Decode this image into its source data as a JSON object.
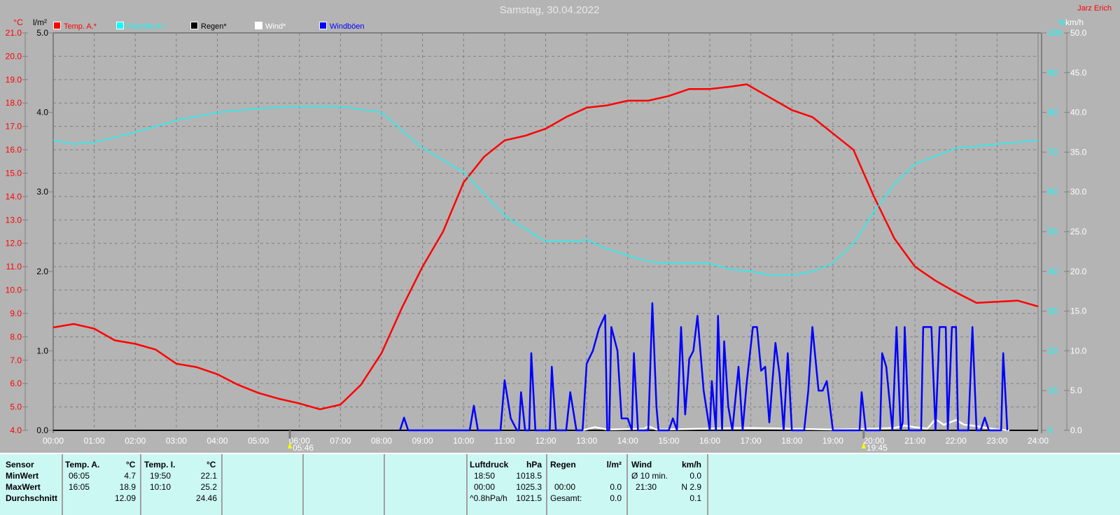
{
  "title": "Samstag, 30.04.2022",
  "author": "Jarz Erich",
  "legend": [
    {
      "label": "Temp. A.*",
      "color": "#ff0000"
    },
    {
      "label": "Feuchte A.*",
      "color": "#00ffff"
    },
    {
      "label": "Regen*",
      "color": "#000000"
    },
    {
      "label": "Wind*",
      "color": "#ffffff"
    },
    {
      "label": "Windböen",
      "color": "#0000ff"
    }
  ],
  "sun": {
    "rise": "05:46",
    "set": "19:45"
  },
  "chart_data": {
    "type": "line",
    "title": "Samstag, 30.04.2022",
    "xlabel": "",
    "x_ticks": [
      "00:00",
      "01:00",
      "02:00",
      "03:00",
      "04:00",
      "05:00",
      "06:00",
      "07:00",
      "08:00",
      "09:00",
      "10:00",
      "11:00",
      "12:00",
      "13:00",
      "14:00",
      "15:00",
      "16:00",
      "17:00",
      "18:00",
      "19:00",
      "20:00",
      "21:00",
      "22:00",
      "23:00",
      "24:00"
    ],
    "axes": {
      "temp": {
        "unit": "°C",
        "range": [
          4,
          21
        ],
        "ticks": [
          "4.0",
          "5.0",
          "6.0",
          "7.0",
          "8.0",
          "9.0",
          "10.0",
          "11.0",
          "12.0",
          "13.0",
          "14.0",
          "15.0",
          "16.0",
          "17.0",
          "18.0",
          "19.0",
          "20.0",
          "21.0"
        ]
      },
      "rain": {
        "unit": "l/m²",
        "range": [
          0,
          5
        ],
        "ticks": [
          "0.0",
          "1.0",
          "2.0",
          "3.0",
          "4.0",
          "5.0"
        ]
      },
      "humidity": {
        "unit": "%",
        "range": [
          0,
          100
        ],
        "ticks": [
          "0",
          "10",
          "20",
          "30",
          "40",
          "50",
          "60",
          "70",
          "80",
          "90",
          "100"
        ]
      },
      "wind": {
        "unit": "km/h",
        "range": [
          0,
          50
        ],
        "ticks": [
          "0.0",
          "5.0",
          "10.0",
          "15.0",
          "20.0",
          "25.0",
          "30.0",
          "35.0",
          "40.0",
          "45.0",
          "50.0"
        ]
      }
    },
    "grid": true,
    "series": [
      {
        "name": "Temp. A.*",
        "axis": "temp",
        "color": "#ff0000",
        "points": [
          [
            0,
            8.4
          ],
          [
            0.5,
            8.55
          ],
          [
            1,
            8.35
          ],
          [
            1.5,
            7.85
          ],
          [
            2,
            7.7
          ],
          [
            2.5,
            7.45
          ],
          [
            3,
            6.85
          ],
          [
            3.5,
            6.7
          ],
          [
            4,
            6.4
          ],
          [
            4.5,
            5.95
          ],
          [
            5,
            5.6
          ],
          [
            5.5,
            5.35
          ],
          [
            6,
            5.15
          ],
          [
            6.5,
            4.9
          ],
          [
            7,
            5.1
          ],
          [
            7.5,
            5.95
          ],
          [
            8,
            7.3
          ],
          [
            8.5,
            9.25
          ],
          [
            9,
            11.0
          ],
          [
            9.5,
            12.5
          ],
          [
            10,
            14.6
          ],
          [
            10.5,
            15.7
          ],
          [
            11,
            16.4
          ],
          [
            11.5,
            16.6
          ],
          [
            12,
            16.9
          ],
          [
            12.5,
            17.4
          ],
          [
            13,
            17.8
          ],
          [
            13.5,
            17.9
          ],
          [
            14,
            18.1
          ],
          [
            14.5,
            18.1
          ],
          [
            15,
            18.3
          ],
          [
            15.5,
            18.6
          ],
          [
            16,
            18.6
          ],
          [
            16.5,
            18.7
          ],
          [
            16.9,
            18.8
          ],
          [
            17.5,
            18.2
          ],
          [
            18,
            17.7
          ],
          [
            18.5,
            17.4
          ],
          [
            19,
            16.7
          ],
          [
            19.5,
            16.0
          ],
          [
            20,
            14.0
          ],
          [
            20.5,
            12.2
          ],
          [
            21,
            11.0
          ],
          [
            21.5,
            10.4
          ],
          [
            22,
            9.9
          ],
          [
            22.5,
            9.45
          ],
          [
            23,
            9.5
          ],
          [
            23.5,
            9.55
          ],
          [
            24,
            9.3
          ]
        ]
      },
      {
        "name": "Feuchte A.*",
        "axis": "humidity",
        "color": "#00ffff",
        "points": [
          [
            0,
            73
          ],
          [
            0.5,
            72
          ],
          [
            1,
            72.5
          ],
          [
            2,
            75
          ],
          [
            3,
            78
          ],
          [
            4,
            80
          ],
          [
            5,
            81
          ],
          [
            6,
            81.5
          ],
          [
            7,
            81.5
          ],
          [
            8,
            80
          ],
          [
            9,
            71
          ],
          [
            10,
            65
          ],
          [
            11,
            54
          ],
          [
            12,
            47.5
          ],
          [
            12.8,
            47.5
          ],
          [
            13,
            48
          ],
          [
            13.4,
            46
          ],
          [
            14,
            44
          ],
          [
            14.5,
            42.5
          ],
          [
            15,
            42
          ],
          [
            16,
            42
          ],
          [
            16.5,
            40.5
          ],
          [
            17,
            40
          ],
          [
            17.5,
            39
          ],
          [
            18,
            39
          ],
          [
            18.5,
            40
          ],
          [
            19,
            42
          ],
          [
            19.5,
            47
          ],
          [
            20,
            55
          ],
          [
            20.5,
            62
          ],
          [
            21,
            67
          ],
          [
            22,
            71
          ],
          [
            23,
            72
          ],
          [
            24,
            73
          ]
        ]
      },
      {
        "name": "Regen*",
        "axis": "rain",
        "color": "#000000",
        "points": [
          [
            0,
            0
          ],
          [
            24,
            0
          ]
        ]
      },
      {
        "name": "Wind*",
        "axis": "wind",
        "color": "#ffffff",
        "points": [
          [
            12.9,
            0
          ],
          [
            13.2,
            0.4
          ],
          [
            13.5,
            0.1
          ],
          [
            14.4,
            0.2
          ],
          [
            14.5,
            0.5
          ],
          [
            14.7,
            0.1
          ],
          [
            17,
            0.3
          ],
          [
            19,
            0.1
          ],
          [
            20,
            0.2
          ],
          [
            20.5,
            0.3
          ],
          [
            20.75,
            0.6
          ],
          [
            21,
            0.4
          ],
          [
            21.3,
            0.2
          ],
          [
            21.5,
            1.4
          ],
          [
            21.7,
            0.7
          ],
          [
            22,
            1.3
          ],
          [
            22.2,
            0.7
          ],
          [
            22.4,
            0.6
          ],
          [
            23,
            0.1
          ],
          [
            23.3,
            0
          ]
        ]
      },
      {
        "name": "Windböen",
        "axis": "wind",
        "color": "#0000ff",
        "points": [
          [
            8.45,
            0
          ],
          [
            8.55,
            1.6
          ],
          [
            8.65,
            0
          ],
          [
            10.15,
            0
          ],
          [
            10.25,
            3.1
          ],
          [
            10.35,
            0
          ],
          [
            10.9,
            0
          ],
          [
            11.0,
            6.3
          ],
          [
            11.15,
            1.5
          ],
          [
            11.3,
            0
          ],
          [
            11.35,
            0
          ],
          [
            11.4,
            4.8
          ],
          [
            11.5,
            0
          ],
          [
            11.6,
            0
          ],
          [
            11.65,
            9.7
          ],
          [
            11.75,
            0
          ],
          [
            12.1,
            0
          ],
          [
            12.15,
            8.0
          ],
          [
            12.25,
            0
          ],
          [
            12.5,
            0
          ],
          [
            12.6,
            4.8
          ],
          [
            12.75,
            0
          ],
          [
            12.9,
            0
          ],
          [
            13.0,
            8.4
          ],
          [
            13.15,
            10
          ],
          [
            13.3,
            12.8
          ],
          [
            13.45,
            14.5
          ],
          [
            13.5,
            0
          ],
          [
            13.55,
            0
          ],
          [
            13.6,
            13
          ],
          [
            13.75,
            10
          ],
          [
            13.85,
            1.5
          ],
          [
            14.0,
            1.5
          ],
          [
            14.1,
            0
          ],
          [
            14.15,
            9.7
          ],
          [
            14.25,
            0
          ],
          [
            14.5,
            0
          ],
          [
            14.6,
            16
          ],
          [
            14.7,
            3
          ],
          [
            14.75,
            0
          ],
          [
            15.0,
            0
          ],
          [
            15.1,
            1.5
          ],
          [
            15.2,
            0
          ],
          [
            15.3,
            13
          ],
          [
            15.4,
            2
          ],
          [
            15.5,
            9
          ],
          [
            15.6,
            10
          ],
          [
            15.7,
            14.4
          ],
          [
            15.85,
            5
          ],
          [
            16.0,
            0
          ],
          [
            16.05,
            6.2
          ],
          [
            16.15,
            0
          ],
          [
            16.2,
            14.4
          ],
          [
            16.3,
            0
          ],
          [
            16.35,
            11.2
          ],
          [
            16.45,
            3
          ],
          [
            16.55,
            0
          ],
          [
            16.7,
            8
          ],
          [
            16.8,
            0
          ],
          [
            16.9,
            6
          ],
          [
            17.05,
            13
          ],
          [
            17.15,
            13
          ],
          [
            17.25,
            7.5
          ],
          [
            17.35,
            8
          ],
          [
            17.45,
            1
          ],
          [
            17.6,
            11
          ],
          [
            17.7,
            7
          ],
          [
            17.8,
            0
          ],
          [
            17.9,
            9.7
          ],
          [
            18.0,
            0
          ],
          [
            18.3,
            0
          ],
          [
            18.4,
            5
          ],
          [
            18.5,
            13
          ],
          [
            18.65,
            5
          ],
          [
            18.75,
            5
          ],
          [
            18.85,
            6.2
          ],
          [
            19.0,
            0
          ],
          [
            19.65,
            0
          ],
          [
            19.7,
            4.8
          ],
          [
            19.8,
            0
          ],
          [
            20.15,
            0
          ],
          [
            20.2,
            9.7
          ],
          [
            20.3,
            8
          ],
          [
            20.45,
            0
          ],
          [
            20.55,
            13
          ],
          [
            20.65,
            0
          ],
          [
            20.7,
            1
          ],
          [
            20.75,
            13
          ],
          [
            20.85,
            0
          ],
          [
            21.15,
            0
          ],
          [
            21.2,
            13
          ],
          [
            21.4,
            13
          ],
          [
            21.5,
            0
          ],
          [
            21.6,
            13
          ],
          [
            21.75,
            13
          ],
          [
            21.8,
            0
          ],
          [
            21.9,
            13
          ],
          [
            22.0,
            13
          ],
          [
            22.05,
            0
          ],
          [
            22.3,
            0
          ],
          [
            22.4,
            13
          ],
          [
            22.5,
            0
          ],
          [
            22.6,
            0
          ],
          [
            22.7,
            1.6
          ],
          [
            22.8,
            0
          ],
          [
            23.1,
            0
          ],
          [
            23.15,
            9.7
          ],
          [
            23.25,
            0
          ]
        ]
      }
    ]
  },
  "table": {
    "sensor": {
      "header": "Sensor",
      "rows": [
        "MinWert",
        "MaxWert",
        "Durchschnitt"
      ]
    },
    "tempA": {
      "header": "Temp. A.",
      "unit": "°C",
      "min_time": "06:05",
      "min": "4.7",
      "max_time": "16:05",
      "max": "18.9",
      "avg": "12.09"
    },
    "tempI": {
      "header": "Temp. I.",
      "unit": "°C",
      "min_time": "19:50",
      "min": "22.1",
      "max_time": "10:10",
      "max": "25.2",
      "avg": "24.46"
    },
    "pressure": {
      "header": "Luftdruck",
      "unit": "hPa",
      "min_time": "18:50",
      "min": "1018.5",
      "max_time": "00:00",
      "max": "1025.3",
      "trend": "^0.8hPa/h",
      "avg": "1021.5"
    },
    "rain": {
      "header": "Regen",
      "unit": "l/m²",
      "max_time": "00:00",
      "max": "0.0",
      "total_label": "Gesamt:",
      "total": "0.0"
    },
    "wind": {
      "header": "Wind",
      "unit": "km/h",
      "avg_label": "Ø 10 min.",
      "avg": "0.0",
      "max_time": "21:30",
      "max": "N 2.9",
      "mean": "0.1"
    }
  }
}
